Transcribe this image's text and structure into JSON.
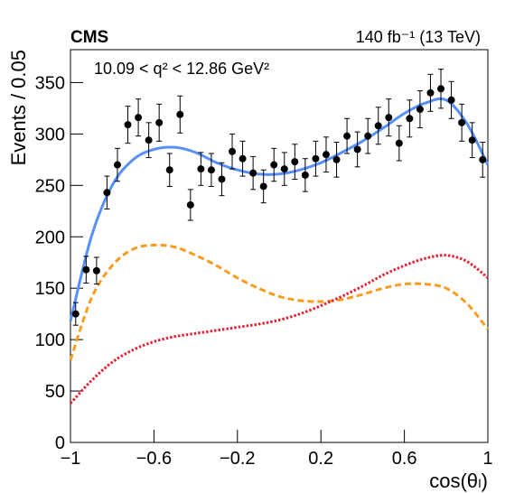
{
  "chart_data": {
    "type": "scatter",
    "experiment": "CMS",
    "luminosity": "140 fb⁻¹ (13 TeV)",
    "annotation": "10.09 < q² < 12.86 GeV²",
    "xlabel": "cos(θₗ)",
    "ylabel": "Events / 0.05",
    "xlim": [
      -1,
      1
    ],
    "ylim": [
      0,
      382
    ],
    "xticks": [
      {
        "value": -1,
        "label": "−1"
      },
      {
        "value": -0.6,
        "label": "−0.6"
      },
      {
        "value": -0.2,
        "label": "−0.2"
      },
      0.2,
      0.6,
      1
    ],
    "yticks": [
      0,
      50,
      100,
      150,
      200,
      250,
      300,
      350
    ],
    "points": {
      "color": "#000000",
      "x": [
        -0.975,
        -0.925,
        -0.875,
        -0.825,
        -0.775,
        -0.725,
        -0.675,
        -0.625,
        -0.575,
        -0.525,
        -0.475,
        -0.425,
        -0.375,
        -0.325,
        -0.275,
        -0.225,
        -0.175,
        -0.125,
        -0.075,
        -0.025,
        0.025,
        0.075,
        0.125,
        0.175,
        0.225,
        0.275,
        0.325,
        0.375,
        0.425,
        0.475,
        0.525,
        0.575,
        0.625,
        0.675,
        0.725,
        0.775,
        0.825,
        0.875,
        0.925,
        0.975
      ],
      "values": [
        125,
        168,
        167,
        243,
        270,
        309,
        316,
        294,
        311,
        265,
        319,
        231,
        266,
        265,
        256,
        283,
        276,
        262,
        249,
        270,
        266,
        273,
        260,
        276,
        280,
        275,
        298,
        285,
        298,
        308,
        316,
        291,
        315,
        324,
        340,
        344,
        333,
        311,
        294,
        275
      ],
      "errors": [
        11,
        13,
        13,
        16,
        16,
        18,
        18,
        17,
        18,
        16,
        18,
        15,
        16,
        16,
        16,
        17,
        17,
        16,
        16,
        16,
        16,
        17,
        16,
        17,
        17,
        17,
        17,
        17,
        17,
        18,
        18,
        17,
        18,
        18,
        18,
        19,
        18,
        18,
        17,
        17
      ]
    },
    "curve_x": [
      -1,
      -0.9,
      -0.8,
      -0.7,
      -0.6,
      -0.5,
      -0.4,
      -0.3,
      -0.2,
      -0.1,
      0,
      0.1,
      0.2,
      0.3,
      0.4,
      0.5,
      0.6,
      0.7,
      0.8,
      0.9,
      1
    ],
    "series": [
      {
        "color": "#5790fc",
        "style": "solid",
        "values": [
          118,
          200,
          250,
          275,
          285,
          287,
          282,
          272,
          265,
          261,
          261,
          265,
          272,
          282,
          293,
          306,
          320,
          330,
          333,
          310,
          270
        ]
      },
      {
        "color": "#f89c20",
        "style": "dashed",
        "values": [
          80,
          140,
          172,
          188,
          192,
          190,
          182,
          172,
          160,
          150,
          142,
          138,
          137,
          139,
          144,
          150,
          154,
          154,
          150,
          135,
          110
        ]
      },
      {
        "color": "#e42536",
        "style": "dotted",
        "values": [
          38,
          60,
          78,
          90,
          98,
          103,
          106,
          109,
          112,
          115,
          119,
          125,
          133,
          142,
          152,
          163,
          172,
          179,
          182,
          176,
          160
        ]
      }
    ]
  }
}
